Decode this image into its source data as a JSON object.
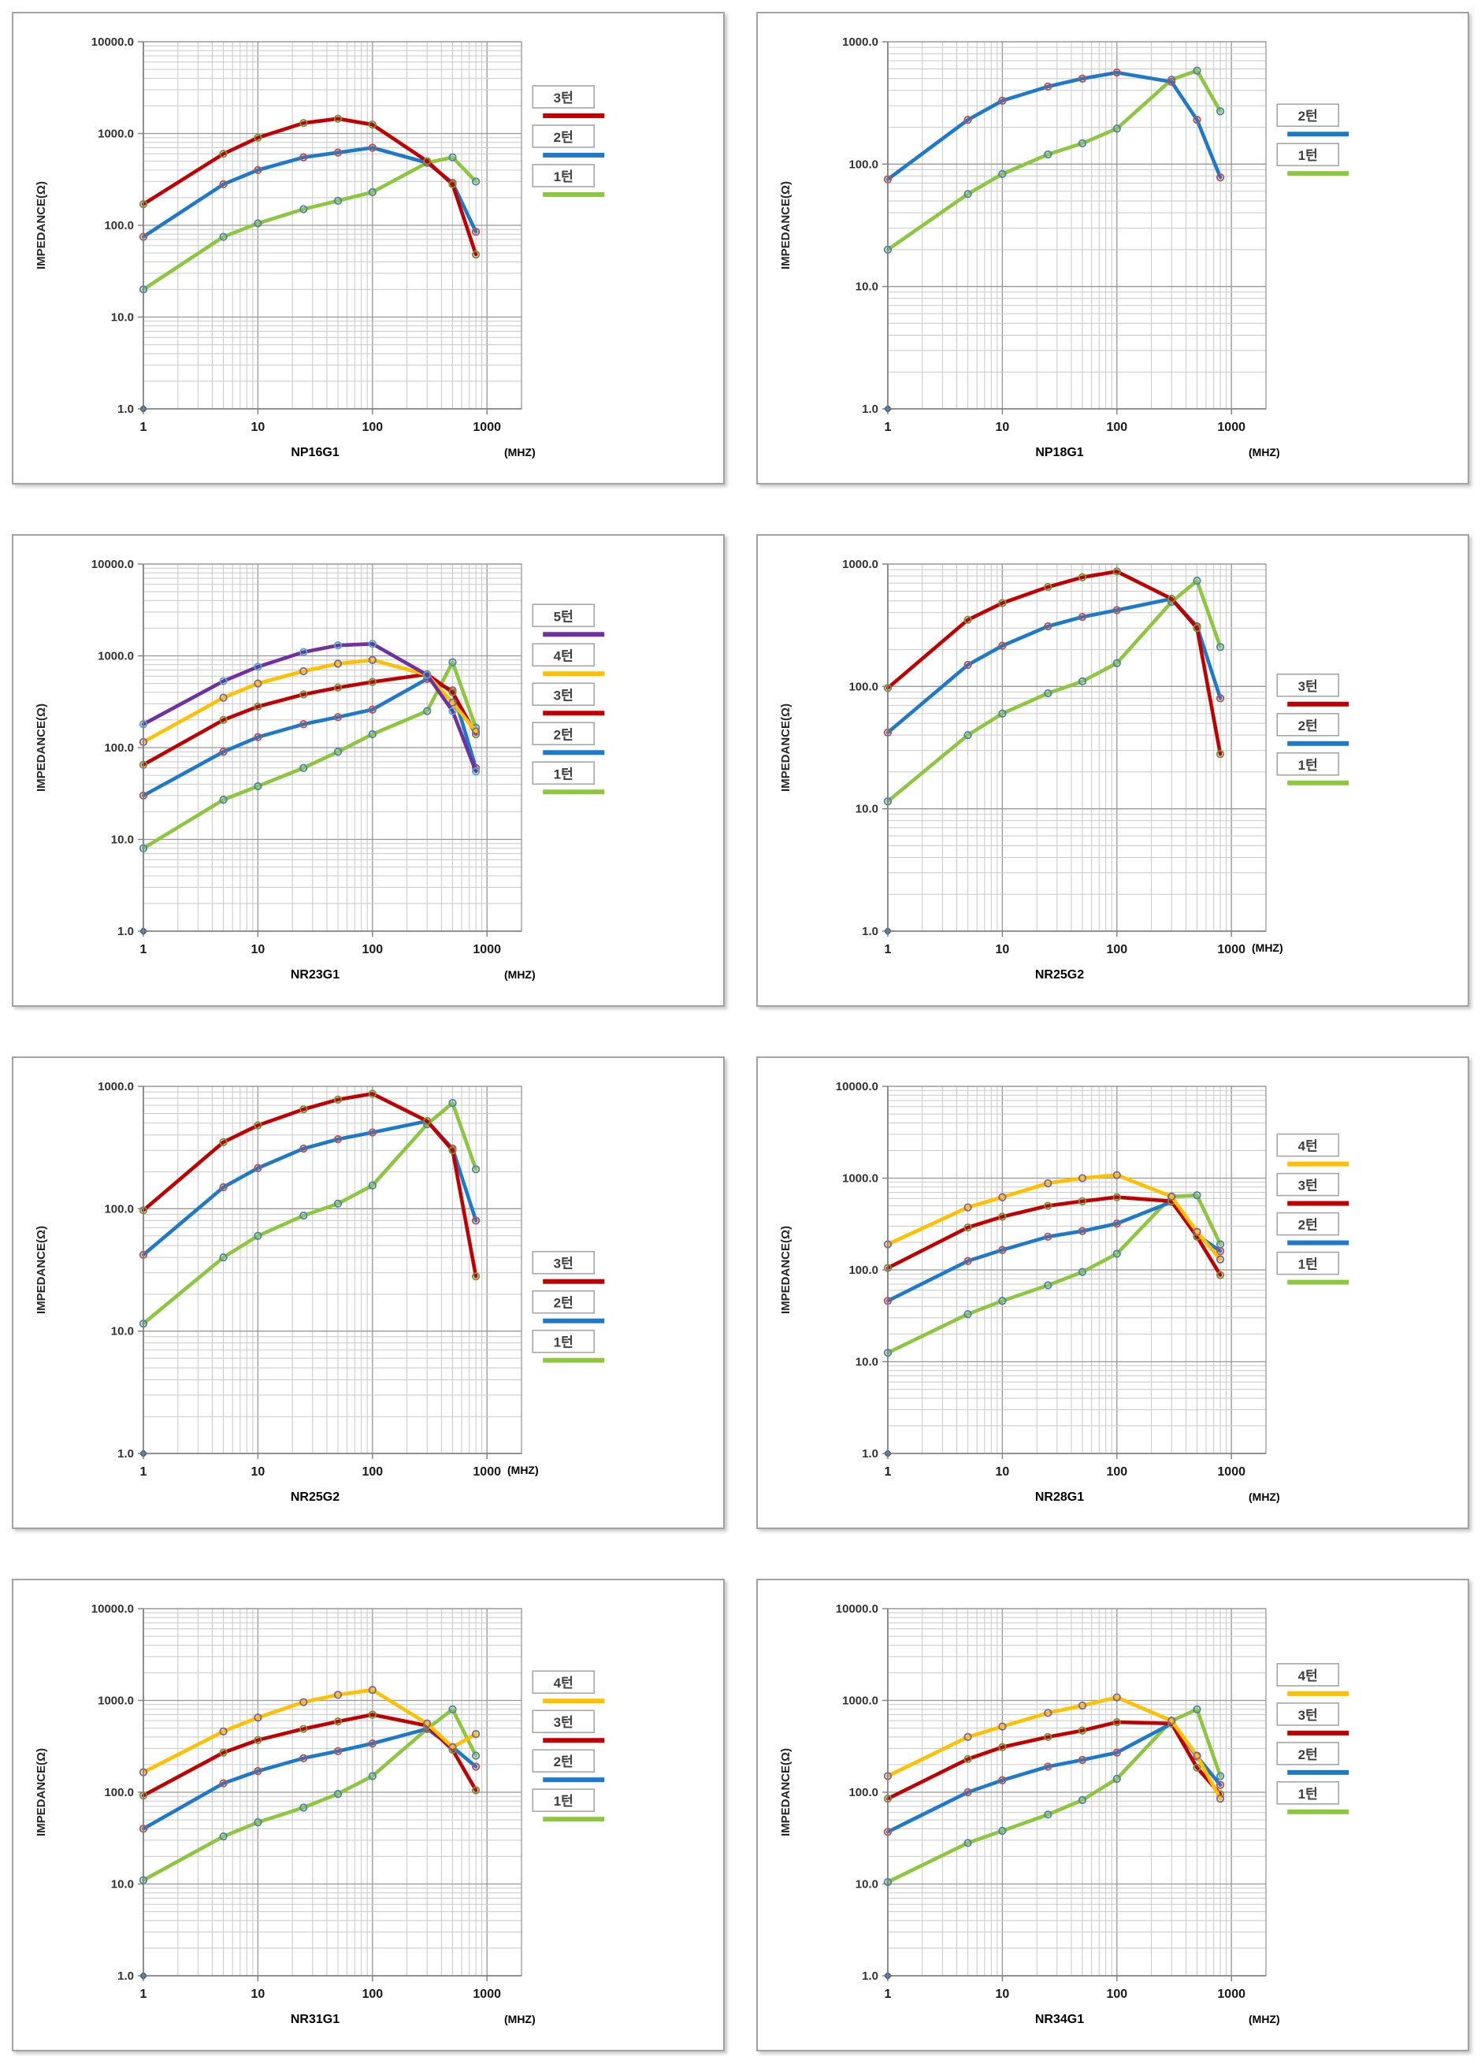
{
  "page": {
    "background": "#FFFFFF"
  },
  "chart_data": [
    {
      "type": "line",
      "title": "NP16G1",
      "ylabel": "IMPEDANCE(Ω)",
      "x_unit_label": "(MHZ)",
      "x_ticks": [
        "1",
        "10",
        "100",
        "1000"
      ],
      "y_tick_labels": [
        "10000.0",
        "1000.0",
        "100.0",
        "10.0",
        "1.0"
      ],
      "xlim": [
        1,
        2000
      ],
      "ylim": [
        1,
        10000
      ],
      "grid": true,
      "legend_position": "right",
      "legend_top_frac": 0.12,
      "mhz_inline": false,
      "x": [
        1,
        5,
        10,
        25,
        50,
        100,
        300,
        500,
        800
      ],
      "origin_marker": {
        "x": 1,
        "y": 1,
        "color": "#4472C4"
      },
      "series": [
        {
          "name": "3턴",
          "color": "#C00000",
          "marker_ring": "#76923C",
          "values": [
            170,
            600,
            900,
            1300,
            1450,
            1250,
            500,
            280,
            48
          ]
        },
        {
          "name": "2턴",
          "color": "#1E7AC9",
          "marker_ring": "#C0504D",
          "values": [
            75,
            280,
            400,
            550,
            620,
            700,
            480,
            290,
            85
          ]
        },
        {
          "name": "1턴",
          "color": "#8DC63F",
          "marker_ring": "#4F81BD",
          "values": [
            20,
            75,
            105,
            150,
            185,
            230,
            480,
            550,
            300
          ]
        }
      ]
    },
    {
      "type": "line",
      "title": "NP18G1",
      "ylabel": "IMPEDANCE(Ω)",
      "x_unit_label": "(MHZ)",
      "x_ticks": [
        "1",
        "10",
        "100",
        "1000"
      ],
      "y_tick_labels": [
        "1000.0",
        "100.0",
        "10.0",
        "1.0"
      ],
      "xlim": [
        1,
        2000
      ],
      "ylim": [
        1,
        1000
      ],
      "grid": true,
      "legend_position": "right",
      "legend_top_frac": 0.17,
      "mhz_inline": false,
      "x": [
        1,
        5,
        10,
        25,
        50,
        100,
        300,
        500,
        800
      ],
      "origin_marker": {
        "x": 1,
        "y": 1,
        "color": "#4472C4"
      },
      "series": [
        {
          "name": "2턴",
          "color": "#1E7AC9",
          "marker_ring": "#C0504D",
          "values": [
            75,
            230,
            330,
            430,
            500,
            560,
            470,
            230,
            78
          ]
        },
        {
          "name": "1턴",
          "color": "#8DC63F",
          "marker_ring": "#4F81BD",
          "values": [
            20,
            57,
            83,
            120,
            148,
            195,
            490,
            580,
            270
          ]
        }
      ]
    },
    {
      "type": "line",
      "title": "NR23G1",
      "ylabel": "IMPEDANCE(Ω)",
      "x_unit_label": "(MHZ)",
      "x_ticks": [
        "1",
        "10",
        "100",
        "1000"
      ],
      "y_tick_labels": [
        "10000.0",
        "1000.0",
        "100.0",
        "10.0",
        "1.0"
      ],
      "xlim": [
        1,
        2000
      ],
      "ylim": [
        1,
        10000
      ],
      "grid": true,
      "legend_position": "right",
      "legend_top_frac": 0.11,
      "mhz_inline": false,
      "x": [
        1,
        5,
        10,
        25,
        50,
        100,
        300,
        500,
        800
      ],
      "origin_marker": {
        "x": 1,
        "y": 1,
        "color": "#4472C4"
      },
      "series": [
        {
          "name": "5턴",
          "color": "#7030A0",
          "marker_ring": "#4BACC6",
          "values": [
            180,
            530,
            760,
            1100,
            1300,
            1350,
            620,
            250,
            55
          ]
        },
        {
          "name": "4턴",
          "color": "#FFC000",
          "marker_ring": "#8064A2",
          "values": [
            115,
            350,
            500,
            680,
            820,
            900,
            620,
            310,
            150
          ]
        },
        {
          "name": "3턴",
          "color": "#C00000",
          "marker_ring": "#76923C",
          "values": [
            65,
            200,
            280,
            380,
            450,
            520,
            630,
            400,
            140
          ]
        },
        {
          "name": "2턴",
          "color": "#1E7AC9",
          "marker_ring": "#C0504D",
          "values": [
            30,
            90,
            130,
            180,
            215,
            260,
            560,
            420,
            60
          ]
        },
        {
          "name": "1턴",
          "color": "#8DC63F",
          "marker_ring": "#4F81BD",
          "values": [
            8,
            27,
            38,
            60,
            90,
            140,
            250,
            850,
            165
          ]
        }
      ]
    },
    {
      "type": "line",
      "title": "NR25G2",
      "ylabel": "IMPEDANCE(Ω)",
      "x_unit_label": "(MHZ)",
      "x_ticks": [
        "1",
        "10",
        "100",
        "1000"
      ],
      "y_tick_labels": [
        "1000.0",
        "100.0",
        "10.0",
        "1.0"
      ],
      "xlim": [
        1,
        2000
      ],
      "ylim": [
        1,
        1000
      ],
      "grid": true,
      "legend_position": "right",
      "legend_top_frac": 0.3,
      "mhz_inline": true,
      "x": [
        1,
        5,
        10,
        25,
        50,
        100,
        300,
        500,
        800
      ],
      "origin_marker": {
        "x": 1,
        "y": 1,
        "color": "#4472C4"
      },
      "series": [
        {
          "name": "3턴",
          "color": "#C00000",
          "marker_ring": "#76923C",
          "values": [
            97,
            350,
            480,
            650,
            780,
            870,
            520,
            300,
            28
          ]
        },
        {
          "name": "2턴",
          "color": "#1E7AC9",
          "marker_ring": "#C0504D",
          "values": [
            42,
            150,
            215,
            310,
            370,
            420,
            520,
            310,
            80
          ]
        },
        {
          "name": "1턴",
          "color": "#8DC63F",
          "marker_ring": "#4F81BD",
          "values": [
            11.5,
            40,
            60,
            88,
            110,
            155,
            490,
            730,
            210
          ]
        }
      ]
    },
    {
      "type": "line",
      "title": "NR25G2",
      "ylabel": "IMPEDANCE(Ω)",
      "x_unit_label": "(MHZ)",
      "x_ticks": [
        "1",
        "10",
        "100",
        "1000"
      ],
      "y_tick_labels": [
        "1000.0",
        "100.0",
        "10.0",
        "1.0"
      ],
      "xlim": [
        1,
        2000
      ],
      "ylim": [
        1,
        1000
      ],
      "grid": true,
      "legend_position": "right",
      "legend_top_frac": 0.45,
      "mhz_inline": true,
      "x": [
        1,
        5,
        10,
        25,
        50,
        100,
        300,
        500,
        800
      ],
      "origin_marker": {
        "x": 1,
        "y": 1,
        "color": "#4472C4"
      },
      "series": [
        {
          "name": "3턴",
          "color": "#C00000",
          "marker_ring": "#76923C",
          "values": [
            97,
            350,
            480,
            650,
            780,
            870,
            520,
            300,
            28
          ]
        },
        {
          "name": "2턴",
          "color": "#1E7AC9",
          "marker_ring": "#C0504D",
          "values": [
            42,
            150,
            215,
            310,
            370,
            420,
            520,
            310,
            80
          ]
        },
        {
          "name": "1턴",
          "color": "#8DC63F",
          "marker_ring": "#4F81BD",
          "values": [
            11.5,
            40,
            60,
            88,
            110,
            155,
            490,
            730,
            210
          ]
        }
      ]
    },
    {
      "type": "line",
      "title": "NR28G1",
      "ylabel": "IMPEDANCE(Ω)",
      "x_unit_label": "(MHZ)",
      "x_ticks": [
        "1",
        "10",
        "100",
        "1000"
      ],
      "y_tick_labels": [
        "10000.0",
        "1000.0",
        "100.0",
        "10.0",
        "1.0"
      ],
      "xlim": [
        1,
        2000
      ],
      "ylim": [
        1,
        10000
      ],
      "grid": true,
      "legend_position": "right",
      "legend_top_frac": 0.13,
      "mhz_inline": false,
      "x": [
        1,
        5,
        10,
        25,
        50,
        100,
        300,
        500,
        800
      ],
      "origin_marker": {
        "x": 1,
        "y": 1,
        "color": "#4472C4"
      },
      "series": [
        {
          "name": "4턴",
          "color": "#FFC000",
          "marker_ring": "#8064A2",
          "values": [
            190,
            480,
            620,
            880,
            1000,
            1080,
            630,
            260,
            130
          ]
        },
        {
          "name": "3턴",
          "color": "#C00000",
          "marker_ring": "#76923C",
          "values": [
            105,
            290,
            380,
            500,
            560,
            620,
            560,
            230,
            88
          ]
        },
        {
          "name": "2턴",
          "color": "#1E7AC9",
          "marker_ring": "#C0504D",
          "values": [
            46,
            125,
            165,
            230,
            265,
            320,
            550,
            240,
            160
          ]
        },
        {
          "name": "1턴",
          "color": "#8DC63F",
          "marker_ring": "#4F81BD",
          "values": [
            12.5,
            33,
            46,
            68,
            95,
            150,
            630,
            650,
            190
          ]
        }
      ]
    },
    {
      "type": "line",
      "title": "NR31G1",
      "ylabel": "IMPEDANCE(Ω)",
      "x_unit_label": "(MHZ)",
      "x_ticks": [
        "1",
        "10",
        "100",
        "1000"
      ],
      "y_tick_labels": [
        "10000.0",
        "1000.0",
        "100.0",
        "10.0",
        "1.0"
      ],
      "xlim": [
        1,
        2000
      ],
      "ylim": [
        1,
        10000
      ],
      "grid": true,
      "legend_position": "right",
      "legend_top_frac": 0.17,
      "mhz_inline": false,
      "x": [
        1,
        5,
        10,
        25,
        50,
        100,
        300,
        500,
        800
      ],
      "origin_marker": {
        "x": 1,
        "y": 1,
        "color": "#4472C4"
      },
      "series": [
        {
          "name": "4턴",
          "color": "#FFC000",
          "marker_ring": "#8064A2",
          "values": [
            165,
            460,
            650,
            960,
            1150,
            1300,
            560,
            310,
            430
          ]
        },
        {
          "name": "3턴",
          "color": "#C00000",
          "marker_ring": "#76923C",
          "values": [
            92,
            270,
            370,
            490,
            590,
            700,
            530,
            290,
            105
          ]
        },
        {
          "name": "2턴",
          "color": "#1E7AC9",
          "marker_ring": "#C0504D",
          "values": [
            40,
            125,
            170,
            235,
            280,
            340,
            490,
            310,
            190
          ]
        },
        {
          "name": "1턴",
          "color": "#8DC63F",
          "marker_ring": "#4F81BD",
          "values": [
            11,
            33,
            47,
            68,
            96,
            150,
            490,
            800,
            250
          ]
        }
      ]
    },
    {
      "type": "line",
      "title": "NR34G1",
      "ylabel": "IMPEDANCE(Ω)",
      "x_unit_label": "(MHZ)",
      "x_ticks": [
        "1",
        "10",
        "100",
        "1000"
      ],
      "y_tick_labels": [
        "10000.0",
        "1000.0",
        "100.0",
        "10.0",
        "1.0"
      ],
      "xlim": [
        1,
        2000
      ],
      "ylim": [
        1,
        10000
      ],
      "grid": true,
      "legend_position": "right",
      "legend_top_frac": 0.15,
      "mhz_inline": false,
      "x": [
        1,
        5,
        10,
        25,
        50,
        100,
        300,
        500,
        800
      ],
      "origin_marker": {
        "x": 1,
        "y": 1,
        "color": "#4472C4"
      },
      "series": [
        {
          "name": "4턴",
          "color": "#FFC000",
          "marker_ring": "#8064A2",
          "values": [
            150,
            400,
            520,
            730,
            880,
            1080,
            600,
            250,
            85
          ]
        },
        {
          "name": "3턴",
          "color": "#C00000",
          "marker_ring": "#76923C",
          "values": [
            85,
            230,
            310,
            400,
            470,
            580,
            560,
            185,
            95
          ]
        },
        {
          "name": "2턴",
          "color": "#1E7AC9",
          "marker_ring": "#C0504D",
          "values": [
            37,
            100,
            135,
            190,
            225,
            270,
            560,
            245,
            120
          ]
        },
        {
          "name": "1턴",
          "color": "#8DC63F",
          "marker_ring": "#4F81BD",
          "values": [
            10.5,
            28,
            38,
            57,
            82,
            140,
            600,
            800,
            150
          ]
        }
      ]
    }
  ]
}
